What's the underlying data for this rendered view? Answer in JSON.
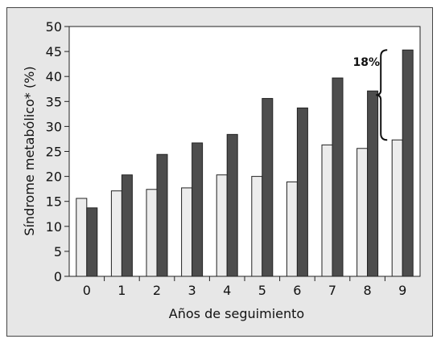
{
  "chart_data": {
    "type": "bar",
    "title": "",
    "xlabel": "Años de seguimiento",
    "ylabel": "Síndrome metabólico* (%)",
    "categories": [
      "0",
      "1",
      "2",
      "3",
      "4",
      "5",
      "6",
      "7",
      "8",
      "9"
    ],
    "ylim": [
      0,
      50
    ],
    "yticks": [
      "0",
      "5",
      "10",
      "15",
      "20",
      "25",
      "30",
      "35",
      "40",
      "45",
      "50"
    ],
    "series": [
      {
        "values": [
          15.6,
          17.1,
          17.4,
          17.7,
          20.3,
          20.0,
          18.9,
          26.3,
          25.6,
          27.3
        ],
        "color": "#ececec"
      },
      {
        "values": [
          13.7,
          20.3,
          24.4,
          26.7,
          28.4,
          35.6,
          33.7,
          39.7,
          37.1,
          45.3
        ],
        "color": "#4d4d4d"
      }
    ],
    "annotation": {
      "text": "18%"
    },
    "grid": false
  }
}
